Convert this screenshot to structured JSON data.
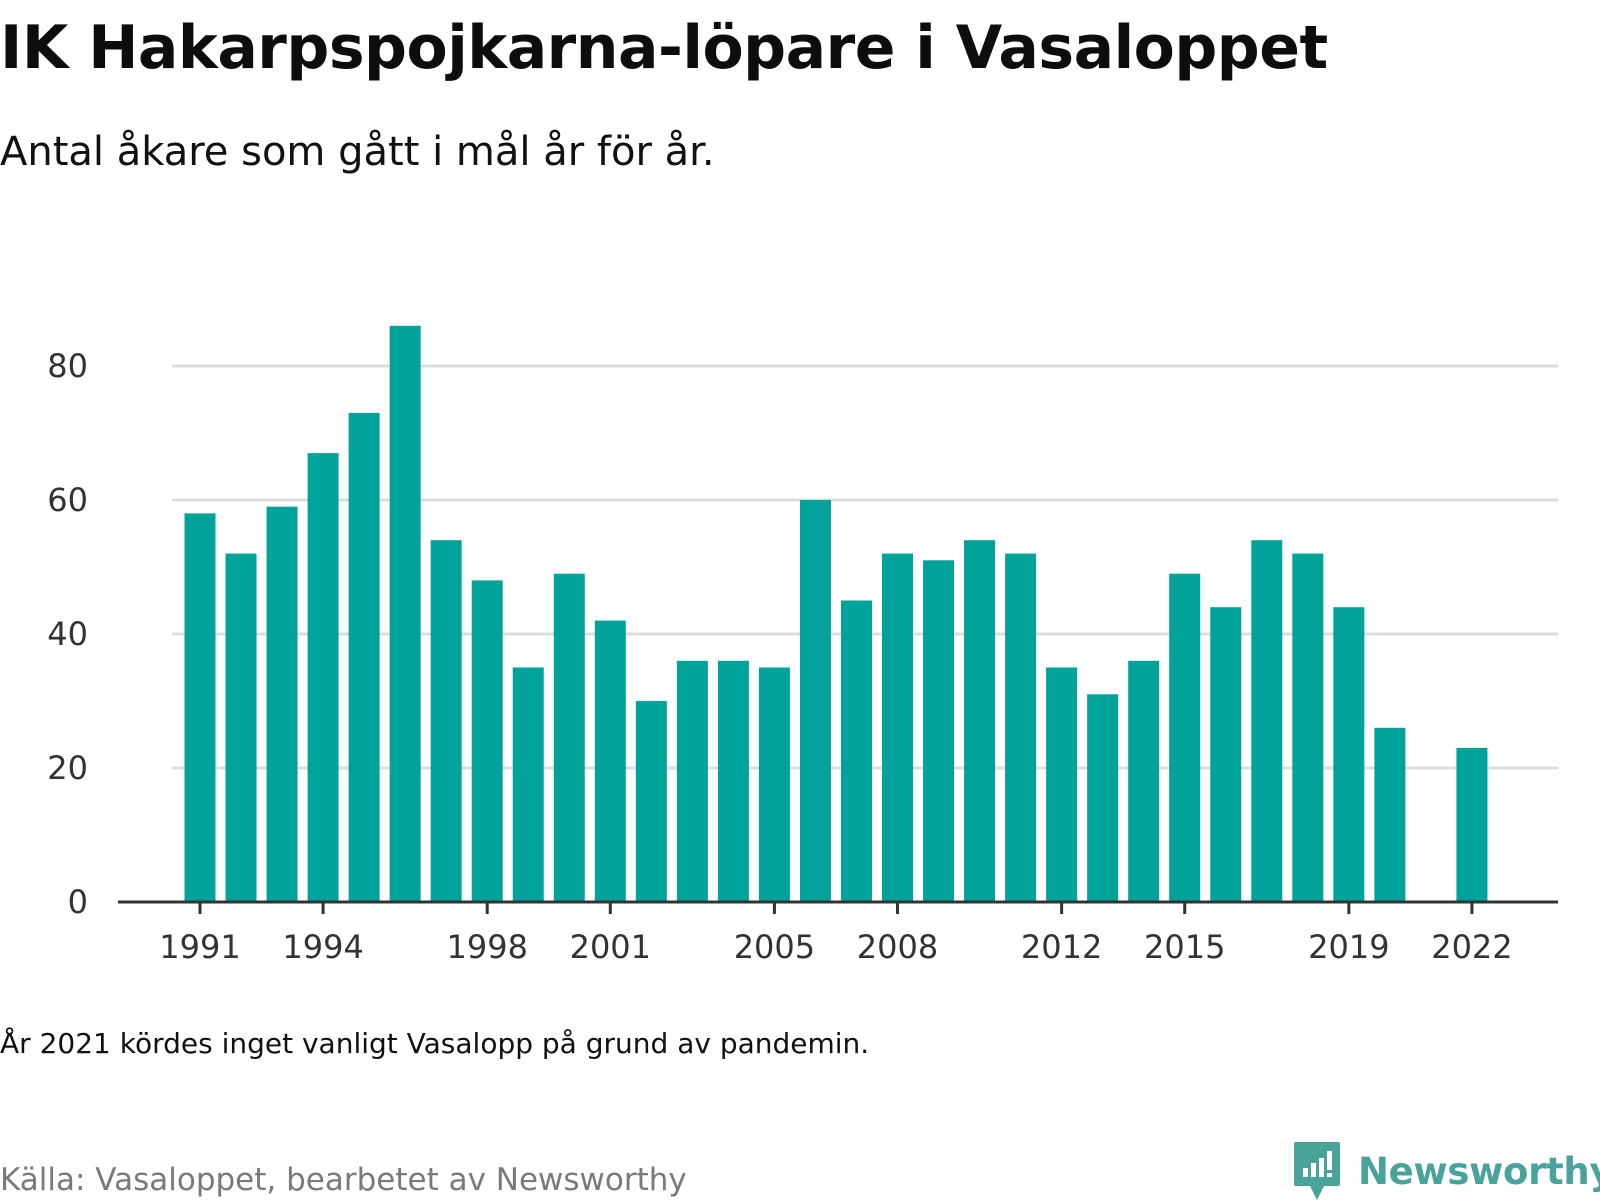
{
  "title": "IK Hakarpspojkarna-löpare i Vasaloppet",
  "subtitle": "Antal åkare som gått i mål år för år.",
  "note": "År 2021 kördes inget vanligt Vasalopp på grund av pandemin.",
  "source": "Källa: Vasaloppet, bearbetet av Newsworthy",
  "brand": {
    "name": "Newsworthy",
    "icon": "newsworthy-logo-icon",
    "color": "#4aa39b"
  },
  "colors": {
    "bar": "#00a39a",
    "grid": "#dddddd",
    "axis": "#333333"
  },
  "chart_data": {
    "type": "bar",
    "x": [
      1991,
      1992,
      1993,
      1994,
      1995,
      1996,
      1997,
      1998,
      1999,
      2000,
      2001,
      2002,
      2003,
      2004,
      2005,
      2006,
      2007,
      2008,
      2009,
      2010,
      2011,
      2012,
      2013,
      2014,
      2015,
      2016,
      2017,
      2018,
      2019,
      2020,
      2022
    ],
    "values": [
      58,
      52,
      59,
      67,
      73,
      86,
      54,
      48,
      35,
      49,
      42,
      30,
      36,
      36,
      35,
      60,
      45,
      52,
      51,
      54,
      52,
      35,
      31,
      36,
      49,
      44,
      54,
      52,
      44,
      26,
      23
    ],
    "xticks": [
      "1991",
      "1994",
      "1998",
      "2001",
      "2005",
      "2008",
      "2012",
      "2015",
      "2019",
      "2022"
    ],
    "yticks": [
      "0",
      "20",
      "40",
      "60",
      "80"
    ],
    "xlim": [
      1991,
      2022
    ],
    "ylim": [
      0,
      86
    ],
    "grid": true,
    "legend": "none"
  }
}
